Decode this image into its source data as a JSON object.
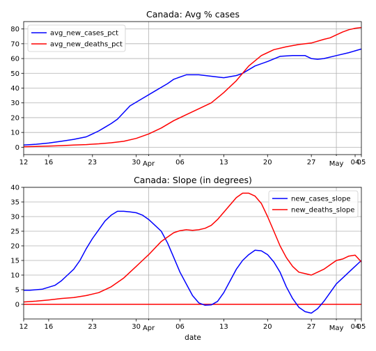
{
  "figure": {
    "xlabel": "date"
  },
  "chart_data": [
    {
      "type": "line",
      "title": "Canada: Avg % cases",
      "xlabel": "",
      "ylabel": "",
      "x_ticks": [
        {
          "day": 12,
          "label": "12"
        },
        {
          "day": 16,
          "label": "16"
        },
        {
          "day": 23,
          "label": "23"
        },
        {
          "day": 30,
          "label": "30"
        },
        {
          "day": 32,
          "label": "Apr",
          "minor": true
        },
        {
          "day": 37,
          "label": "06"
        },
        {
          "day": 44,
          "label": "13"
        },
        {
          "day": 51,
          "label": "20"
        },
        {
          "day": 58,
          "label": "27"
        },
        {
          "day": 62,
          "label": "May",
          "minor": true
        },
        {
          "day": 65,
          "label": "04"
        },
        {
          "day": 66,
          "label": "05"
        }
      ],
      "xlim": [
        12,
        66
      ],
      "ylim": [
        -5,
        85
      ],
      "yticks": [
        0,
        10,
        20,
        30,
        40,
        50,
        60,
        70,
        80
      ],
      "grid": true,
      "legend": "top-left",
      "series": [
        {
          "name": "avg_new_cases_pct",
          "color": "#0000ff",
          "x": [
            12,
            14,
            16,
            18,
            20,
            22,
            23,
            24,
            25,
            26,
            27,
            29,
            31,
            33,
            35,
            36,
            38,
            40,
            42,
            44,
            46,
            47,
            49,
            51,
            53,
            55,
            57,
            58,
            59,
            60,
            62,
            64,
            66
          ],
          "y": [
            1.5,
            2,
            2.8,
            4,
            5.3,
            7,
            9,
            11,
            13.5,
            16,
            19,
            28,
            33,
            38,
            43,
            46,
            49,
            49,
            48,
            47,
            48.5,
            50,
            55,
            58,
            61.5,
            62,
            62,
            60,
            59.5,
            60,
            62,
            64,
            66.5
          ]
        },
        {
          "name": "avg_new_deaths_pct",
          "color": "#ff0000",
          "x": [
            12,
            14,
            16,
            18,
            20,
            22,
            24,
            26,
            28,
            30,
            32,
            34,
            36,
            38,
            40,
            42,
            44,
            46,
            48,
            50,
            52,
            54,
            56,
            58,
            60,
            61,
            62,
            63,
            64,
            65,
            66
          ],
          "y": [
            0.3,
            0.5,
            0.8,
            1.1,
            1.5,
            1.8,
            2.3,
            3,
            4,
            6,
            9,
            13,
            18,
            22,
            26,
            30,
            37,
            45,
            55,
            62,
            66,
            68,
            69.5,
            70.5,
            73,
            74,
            76,
            78,
            79.5,
            80.5,
            81
          ]
        }
      ]
    },
    {
      "type": "line",
      "title": "Canada: Slope (in degrees)",
      "xlabel": "date",
      "ylabel": "",
      "x_ticks": [
        {
          "day": 12,
          "label": "12"
        },
        {
          "day": 16,
          "label": "16"
        },
        {
          "day": 23,
          "label": "23"
        },
        {
          "day": 30,
          "label": "30"
        },
        {
          "day": 32,
          "label": "Apr",
          "minor": true
        },
        {
          "day": 37,
          "label": "06"
        },
        {
          "day": 44,
          "label": "13"
        },
        {
          "day": 51,
          "label": "20"
        },
        {
          "day": 58,
          "label": "27"
        },
        {
          "day": 62,
          "label": "May",
          "minor": true
        },
        {
          "day": 65,
          "label": "04"
        },
        {
          "day": 66,
          "label": "05"
        }
      ],
      "xlim": [
        12,
        66
      ],
      "ylim": [
        -5,
        40
      ],
      "yticks": [
        0,
        5,
        10,
        15,
        20,
        25,
        30,
        35,
        40
      ],
      "grid": true,
      "legend": "top-right",
      "zero_line": {
        "value": 0,
        "color": "#ff0000"
      },
      "series": [
        {
          "name": "new_cases_slope",
          "color": "#0000ff",
          "x": [
            12,
            13,
            15,
            17,
            18,
            19,
            20,
            21,
            22,
            23,
            24,
            25,
            26,
            27,
            28,
            29,
            30,
            31,
            32,
            33,
            34,
            35,
            36,
            37,
            38,
            39,
            40,
            41,
            42,
            43,
            44,
            45,
            46,
            47,
            48,
            49,
            50,
            51,
            52,
            53,
            54,
            55,
            56,
            57,
            58,
            59,
            60,
            61,
            62,
            63,
            64,
            65,
            66
          ],
          "y": [
            4.8,
            4.8,
            5.2,
            6.5,
            8,
            10,
            12,
            15,
            19,
            22.5,
            25.5,
            28.5,
            30.5,
            31.8,
            31.8,
            31.6,
            31.3,
            30.5,
            29,
            27,
            25,
            21,
            16,
            11,
            7,
            3,
            0.5,
            -0.3,
            -0.2,
            1,
            4,
            8,
            12,
            15,
            17,
            18.5,
            18.3,
            17,
            14.5,
            11,
            6,
            2,
            -1,
            -2.5,
            -3,
            -1.5,
            1,
            4,
            7,
            9,
            11,
            13,
            15
          ]
        },
        {
          "name": "new_deaths_slope",
          "color": "#ff0000",
          "x": [
            12,
            14,
            16,
            18,
            20,
            22,
            24,
            26,
            28,
            30,
            31,
            32,
            34,
            35,
            36,
            37,
            38,
            39,
            40,
            41,
            42,
            43,
            44,
            45,
            46,
            47,
            48,
            49,
            50,
            51,
            52,
            53,
            54,
            55,
            56,
            57,
            58,
            59,
            60,
            61,
            62,
            63,
            64,
            65,
            66
          ],
          "y": [
            0.8,
            1.1,
            1.5,
            2,
            2.3,
            3,
            4,
            6,
            9,
            13,
            15,
            17,
            21.5,
            23,
            24.5,
            25.2,
            25.5,
            25.3,
            25.5,
            26,
            27,
            29,
            31.5,
            34,
            36.5,
            38,
            38,
            37,
            34.5,
            30,
            25,
            20,
            16,
            13,
            11,
            10.5,
            10,
            11,
            12,
            13.5,
            15,
            15.5,
            16.5,
            16.8,
            14.5
          ]
        }
      ]
    }
  ]
}
